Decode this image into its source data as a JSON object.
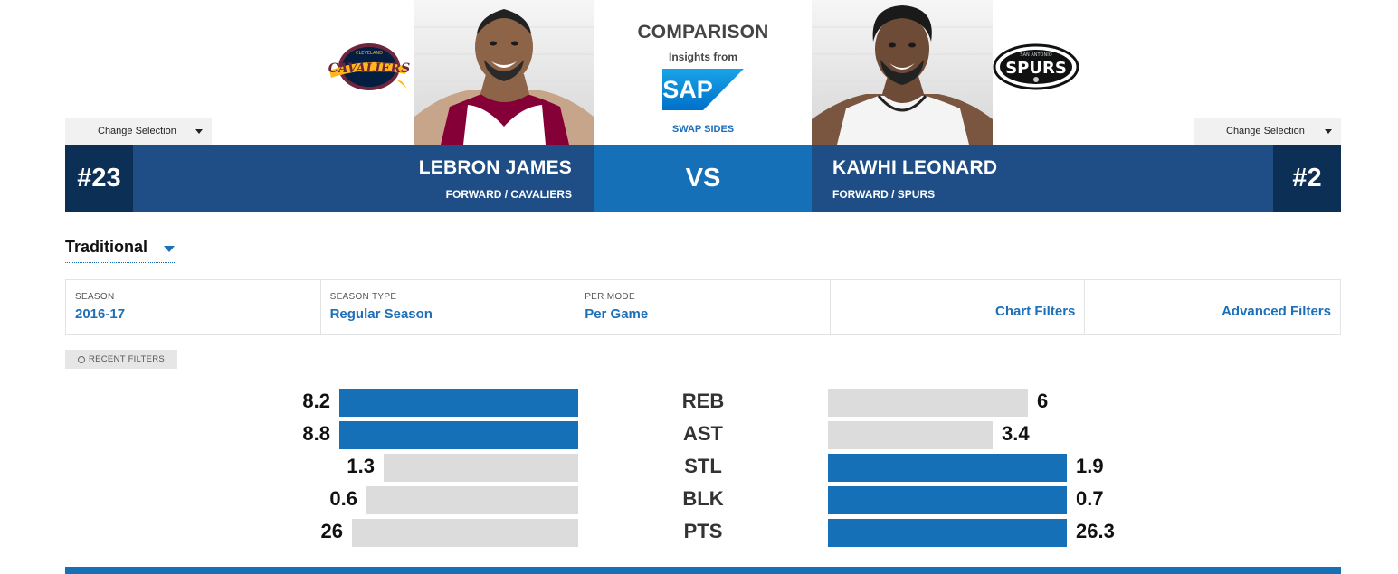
{
  "header": {
    "comparison_title": "COMPARISON",
    "insights_label": "Insights from",
    "sponsor": "SAP",
    "swap_label": "SWAP SIDES",
    "vs_label": "VS"
  },
  "player_left": {
    "change_selection": "Change Selection",
    "number": "#23",
    "name": "LEBRON JAMES",
    "position": "FORWARD / CAVALIERS",
    "team_logo_text": "CAVALIERS",
    "team_logo_subtext": "CLEVELAND",
    "team_colors": {
      "primary": "#6f263d",
      "secondary": "#041e42",
      "accent": "#ffb81c"
    },
    "jersey_color": "#860038"
  },
  "player_right": {
    "change_selection": "Change Selection",
    "number": "#2",
    "name": "KAWHI LEONARD",
    "position": "FORWARD / SPURS",
    "team_logo_text": "SPURS",
    "team_logo_subtext": "SAN ANTONIO",
    "team_colors": {
      "primary": "#000000",
      "secondary": "#c4ced4"
    },
    "jersey_color": "#ffffff"
  },
  "mode": {
    "label": "Traditional"
  },
  "filters": [
    {
      "caption": "SEASON",
      "value": "2016-17"
    },
    {
      "caption": "SEASON TYPE",
      "value": "Regular Season"
    },
    {
      "caption": "PER MODE",
      "value": "Per Game"
    }
  ],
  "filter_links": {
    "chart": "Chart Filters",
    "advanced": "Advanced Filters"
  },
  "recent_filters": "RECENT FILTERS",
  "colors": {
    "dark_navy": "#0c2f55",
    "navy": "#1f4d86",
    "blue": "#1570b7",
    "link": "#1d6fb8",
    "bar_inactive": "#dcdcdc"
  },
  "chart_data": {
    "type": "bar",
    "categories": [
      "REB",
      "AST",
      "STL",
      "BLK",
      "PTS"
    ],
    "series": [
      {
        "name": "LEBRON JAMES",
        "values": [
          8.2,
          8.8,
          1.3,
          0.6,
          26
        ]
      },
      {
        "name": "KAWHI LEONARD",
        "values": [
          6,
          3.4,
          1.9,
          0.7,
          26.3
        ]
      }
    ],
    "value_labels_left": [
      "8.2",
      "8.8",
      "1.3",
      "0.6",
      "26"
    ],
    "value_labels_right": [
      "6",
      "3.4",
      "1.9",
      "0.7",
      "26.3"
    ],
    "highlight": [
      "left",
      "left",
      "right",
      "right",
      "right"
    ]
  }
}
